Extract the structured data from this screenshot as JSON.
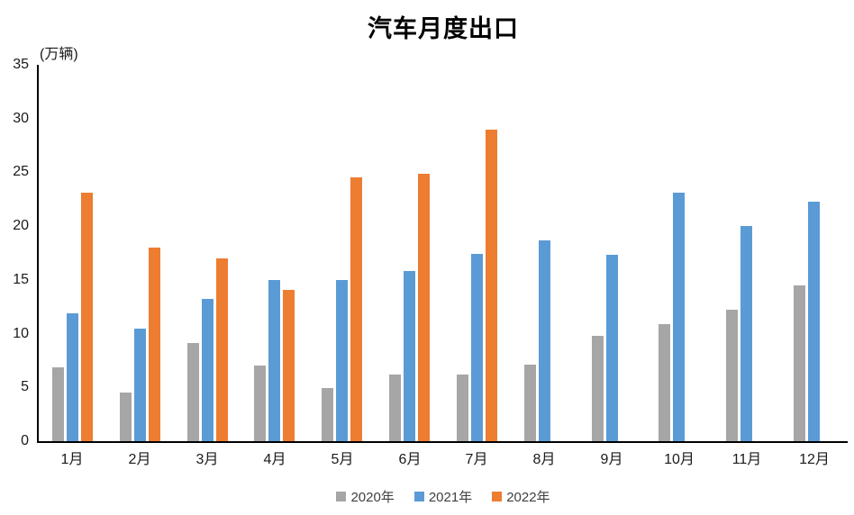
{
  "chart_data": {
    "type": "bar",
    "title": "汽车月度出口",
    "unit_label": "(万辆)",
    "xlabel": "",
    "ylabel": "(万辆)",
    "ylim": [
      0,
      35
    ],
    "y_ticks": [
      0,
      5,
      10,
      15,
      20,
      25,
      30,
      35
    ],
    "grid": false,
    "legend_position": "bottom",
    "categories": [
      "1月",
      "2月",
      "3月",
      "4月",
      "5月",
      "6月",
      "7月",
      "8月",
      "9月",
      "10月",
      "11月",
      "12月"
    ],
    "series": [
      {
        "name": "2020年",
        "color": "#A6A6A6",
        "values": [
          6.9,
          4.5,
          9.1,
          7.0,
          4.9,
          6.2,
          6.2,
          7.1,
          9.8,
          10.9,
          12.2,
          14.5
        ]
      },
      {
        "name": "2021年",
        "color": "#5B9BD5",
        "values": [
          11.9,
          10.5,
          13.2,
          15.0,
          15.0,
          15.8,
          17.4,
          18.7,
          17.3,
          23.1,
          20.0,
          22.3
        ]
      },
      {
        "name": "2022年",
        "color": "#ED7D31",
        "values": [
          23.1,
          18.0,
          17.0,
          14.1,
          24.5,
          24.9,
          29.0,
          null,
          null,
          null,
          null,
          null
        ]
      }
    ]
  }
}
